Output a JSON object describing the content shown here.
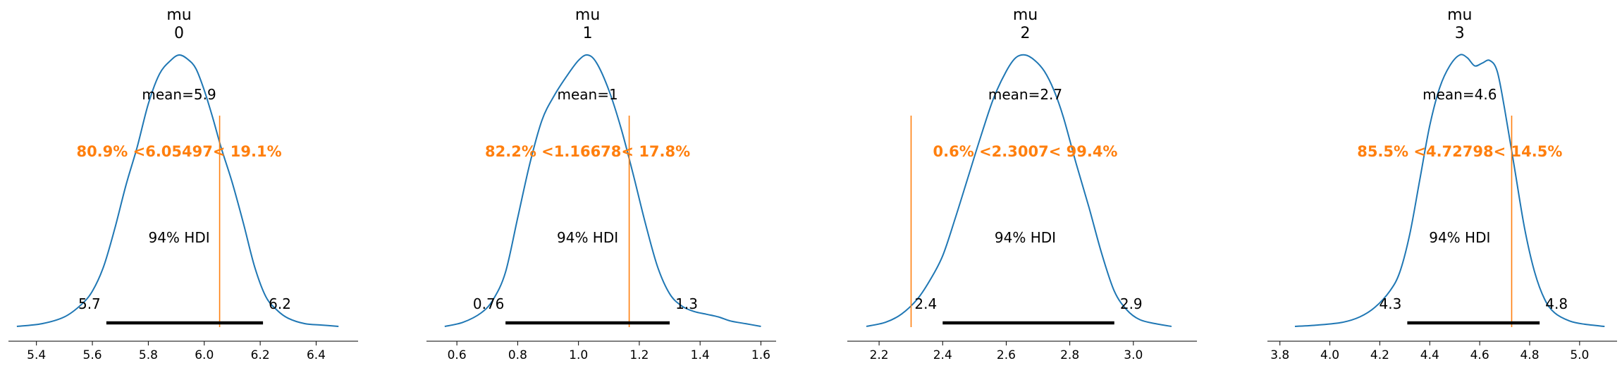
{
  "chart_data": [
    {
      "type": "area",
      "title": "mu\n0",
      "title_lines": [
        "mu",
        "0"
      ],
      "xlim": [
        5.3,
        6.55
      ],
      "xticks": [
        5.4,
        5.6,
        5.8,
        6.0,
        6.2,
        6.4
      ],
      "xtick_labels": [
        "5.4",
        "5.6",
        "5.8",
        "6.0",
        "6.2",
        "6.4"
      ],
      "density": {
        "x": [
          5.33,
          5.42,
          5.5,
          5.56,
          5.6,
          5.64,
          5.68,
          5.72,
          5.76,
          5.8,
          5.84,
          5.88,
          5.91,
          5.94,
          5.97,
          6.0,
          6.03,
          6.06,
          6.1,
          6.14,
          6.18,
          6.22,
          6.26,
          6.3,
          6.36,
          6.42,
          6.48
        ],
        "y": [
          0.0,
          0.01,
          0.035,
          0.08,
          0.13,
          0.22,
          0.36,
          0.52,
          0.66,
          0.82,
          0.93,
          0.98,
          1.0,
          0.985,
          0.95,
          0.87,
          0.77,
          0.66,
          0.53,
          0.38,
          0.22,
          0.11,
          0.06,
          0.03,
          0.01,
          0.005,
          0.0
        ]
      },
      "mean_label": "mean=5.9",
      "hdi_label": "94% HDI",
      "hdi": [
        5.65,
        6.21
      ],
      "hdi_lower_label": "5.7",
      "hdi_upper_label": "6.2",
      "ref_val": 6.05497,
      "ref_label": "80.9% <6.05497< 19.1%"
    },
    {
      "type": "area",
      "title": "mu\n1",
      "title_lines": [
        "mu",
        "1"
      ],
      "xlim": [
        0.5,
        1.65
      ],
      "xticks": [
        0.6,
        0.8,
        1.0,
        1.2,
        1.4,
        1.6
      ],
      "xtick_labels": [
        "0.6",
        "0.8",
        "1.0",
        "1.2",
        "1.4",
        "1.6"
      ],
      "density": {
        "x": [
          0.56,
          0.62,
          0.68,
          0.72,
          0.76,
          0.8,
          0.84,
          0.88,
          0.92,
          0.96,
          1.0,
          1.03,
          1.06,
          1.1,
          1.14,
          1.18,
          1.22,
          1.26,
          1.3,
          1.34,
          1.38,
          1.42,
          1.46,
          1.5,
          1.55,
          1.6
        ],
        "y": [
          0.0,
          0.015,
          0.05,
          0.1,
          0.2,
          0.4,
          0.6,
          0.76,
          0.85,
          0.92,
          0.98,
          1.0,
          0.97,
          0.87,
          0.73,
          0.56,
          0.38,
          0.22,
          0.12,
          0.075,
          0.055,
          0.045,
          0.035,
          0.02,
          0.01,
          0.0
        ]
      },
      "mean_label": "mean=1",
      "hdi_label": "94% HDI",
      "hdi": [
        0.76,
        1.3
      ],
      "hdi_lower_label": "0.76",
      "hdi_upper_label": "1.3",
      "ref_val": 1.16678,
      "ref_label": "82.2% <1.16678< 17.8%"
    },
    {
      "type": "area",
      "title": "mu\n2",
      "title_lines": [
        "mu",
        "2"
      ],
      "xlim": [
        2.1,
        3.2
      ],
      "xticks": [
        2.2,
        2.4,
        2.6,
        2.8,
        3.0
      ],
      "xtick_labels": [
        "2.2",
        "2.4",
        "2.6",
        "2.8",
        "3.0"
      ],
      "density": {
        "x": [
          2.16,
          2.22,
          2.27,
          2.32,
          2.36,
          2.4,
          2.44,
          2.48,
          2.52,
          2.56,
          2.6,
          2.63,
          2.66,
          2.69,
          2.72,
          2.75,
          2.78,
          2.82,
          2.86,
          2.9,
          2.94,
          2.98,
          3.02,
          3.07,
          3.12
        ],
        "y": [
          0.0,
          0.015,
          0.045,
          0.1,
          0.17,
          0.26,
          0.4,
          0.55,
          0.7,
          0.84,
          0.94,
          0.99,
          1.0,
          0.98,
          0.94,
          0.87,
          0.77,
          0.6,
          0.44,
          0.27,
          0.13,
          0.06,
          0.025,
          0.01,
          0.0
        ]
      },
      "mean_label": "mean=2.7",
      "hdi_label": "94% HDI",
      "hdi": [
        2.4,
        2.94
      ],
      "hdi_lower_label": "2.4",
      "hdi_upper_label": "2.9",
      "ref_val": 2.3007,
      "ref_label": "0.6% <2.3007< 99.4%"
    },
    {
      "type": "area",
      "title": "mu\n3",
      "title_lines": [
        "mu",
        "3"
      ],
      "xlim": [
        3.75,
        5.15
      ],
      "xticks": [
        3.8,
        4.0,
        4.2,
        4.4,
        4.6,
        4.8,
        5.0
      ],
      "xtick_labels": [
        "3.8",
        "4.0",
        "4.2",
        "4.4",
        "4.6",
        "4.8",
        "5.0"
      ],
      "density": {
        "x": [
          3.86,
          3.95,
          4.05,
          4.12,
          4.18,
          4.24,
          4.28,
          4.32,
          4.36,
          4.4,
          4.44,
          4.48,
          4.52,
          4.55,
          4.58,
          4.61,
          4.64,
          4.67,
          4.7,
          4.74,
          4.78,
          4.82,
          4.86,
          4.9,
          4.96,
          5.02,
          5.1
        ],
        "y": [
          0.0,
          0.005,
          0.015,
          0.035,
          0.07,
          0.13,
          0.2,
          0.34,
          0.54,
          0.74,
          0.88,
          0.96,
          1.0,
          0.99,
          0.96,
          0.97,
          0.98,
          0.94,
          0.8,
          0.58,
          0.36,
          0.2,
          0.1,
          0.05,
          0.02,
          0.008,
          0.0
        ]
      },
      "mean_label": "mean=4.6",
      "hdi_label": "94% HDI",
      "hdi": [
        4.31,
        4.84
      ],
      "hdi_lower_label": "4.3",
      "hdi_upper_label": "4.8",
      "ref_val": 4.72798,
      "ref_label": "85.5% <4.72798< 14.5%"
    }
  ],
  "colors": {
    "density": "#1f77b4",
    "ref_line": "#ff7f0e",
    "ref_text": "#ff7f0e",
    "hdi_bar": "#000000",
    "axis": "#000000"
  }
}
